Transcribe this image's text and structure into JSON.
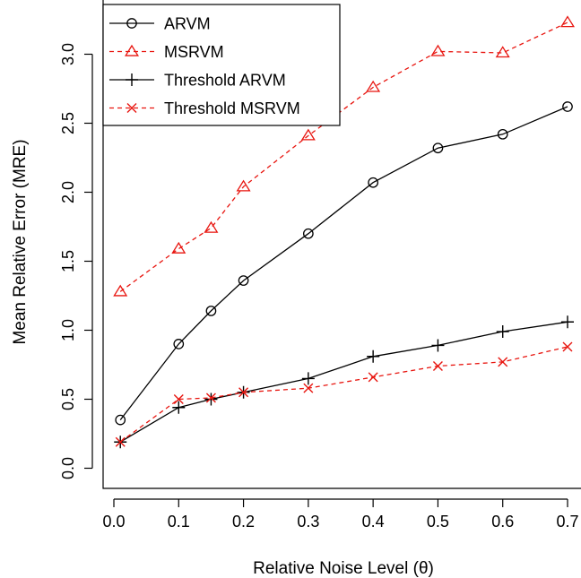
{
  "chart_data": {
    "type": "line",
    "title": "",
    "xlabel": "Relative Noise Level (θ)",
    "ylabel": "Mean Relative Error (MRE)",
    "xlim": [
      0.0,
      0.7
    ],
    "ylim": [
      0.0,
      3.2
    ],
    "x_ticks": [
      "0.0",
      "0.1",
      "0.2",
      "0.3",
      "0.4",
      "0.5",
      "0.6",
      "0.7"
    ],
    "y_ticks": [
      "0.0",
      "0.5",
      "1.0",
      "1.5",
      "2.0",
      "2.5",
      "3.0"
    ],
    "grid": false,
    "legend_position": "top-left",
    "x": [
      0.01,
      0.1,
      0.15,
      0.2,
      0.3,
      0.4,
      0.5,
      0.6,
      0.7
    ],
    "series": [
      {
        "name": "ARVM",
        "color": "#000000",
        "dashed": false,
        "marker": "circle",
        "values": [
          0.35,
          0.9,
          1.14,
          1.36,
          1.7,
          2.07,
          2.32,
          2.42,
          2.62
        ]
      },
      {
        "name": "MSRVM",
        "color": "#e8150f",
        "dashed": true,
        "marker": "triangle",
        "values": [
          1.28,
          1.59,
          1.74,
          2.04,
          2.41,
          2.76,
          3.02,
          3.01,
          3.23
        ]
      },
      {
        "name": "Threshold ARVM",
        "color": "#000000",
        "dashed": false,
        "marker": "plus",
        "values": [
          0.19,
          0.44,
          0.5,
          0.55,
          0.65,
          0.81,
          0.89,
          0.99,
          1.06
        ]
      },
      {
        "name": "Threshold MSRVM",
        "color": "#e8150f",
        "dashed": true,
        "marker": "cross",
        "values": [
          0.19,
          0.5,
          0.51,
          0.55,
          0.58,
          0.66,
          0.74,
          0.77,
          0.88
        ]
      }
    ]
  }
}
